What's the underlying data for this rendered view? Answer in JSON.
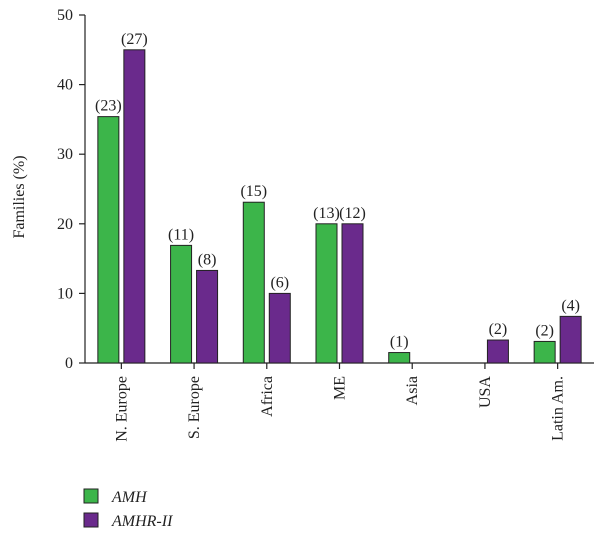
{
  "chart_data": {
    "type": "bar",
    "title": "",
    "xlabel": "",
    "ylabel": "Families (%)",
    "ylim": [
      0,
      50
    ],
    "yticks": [
      "0",
      "10",
      "20",
      "30",
      "40",
      "50"
    ],
    "grid": false,
    "legend_position": "bottom-left",
    "categories": [
      "N. Europe",
      "S. Europe",
      "Africa",
      "ME",
      "Asia",
      "USA",
      "Latin Am."
    ],
    "series": [
      {
        "name": "AMH",
        "color": "#3cb54a",
        "values": [
          35.4,
          16.9,
          23.1,
          20.0,
          1.5,
          0,
          3.1
        ],
        "labels": [
          "(23)",
          "(11)",
          "(15)",
          "(13)",
          "(1)",
          "",
          "(2)"
        ]
      },
      {
        "name": "AMHR-II",
        "color": "#6a2a8c",
        "values": [
          45.0,
          13.3,
          10.0,
          20.0,
          0,
          3.3,
          6.7
        ],
        "labels": [
          "(27)",
          "(8)",
          "(6)",
          "(12)",
          "",
          "(2)",
          "(4)"
        ]
      }
    ]
  }
}
